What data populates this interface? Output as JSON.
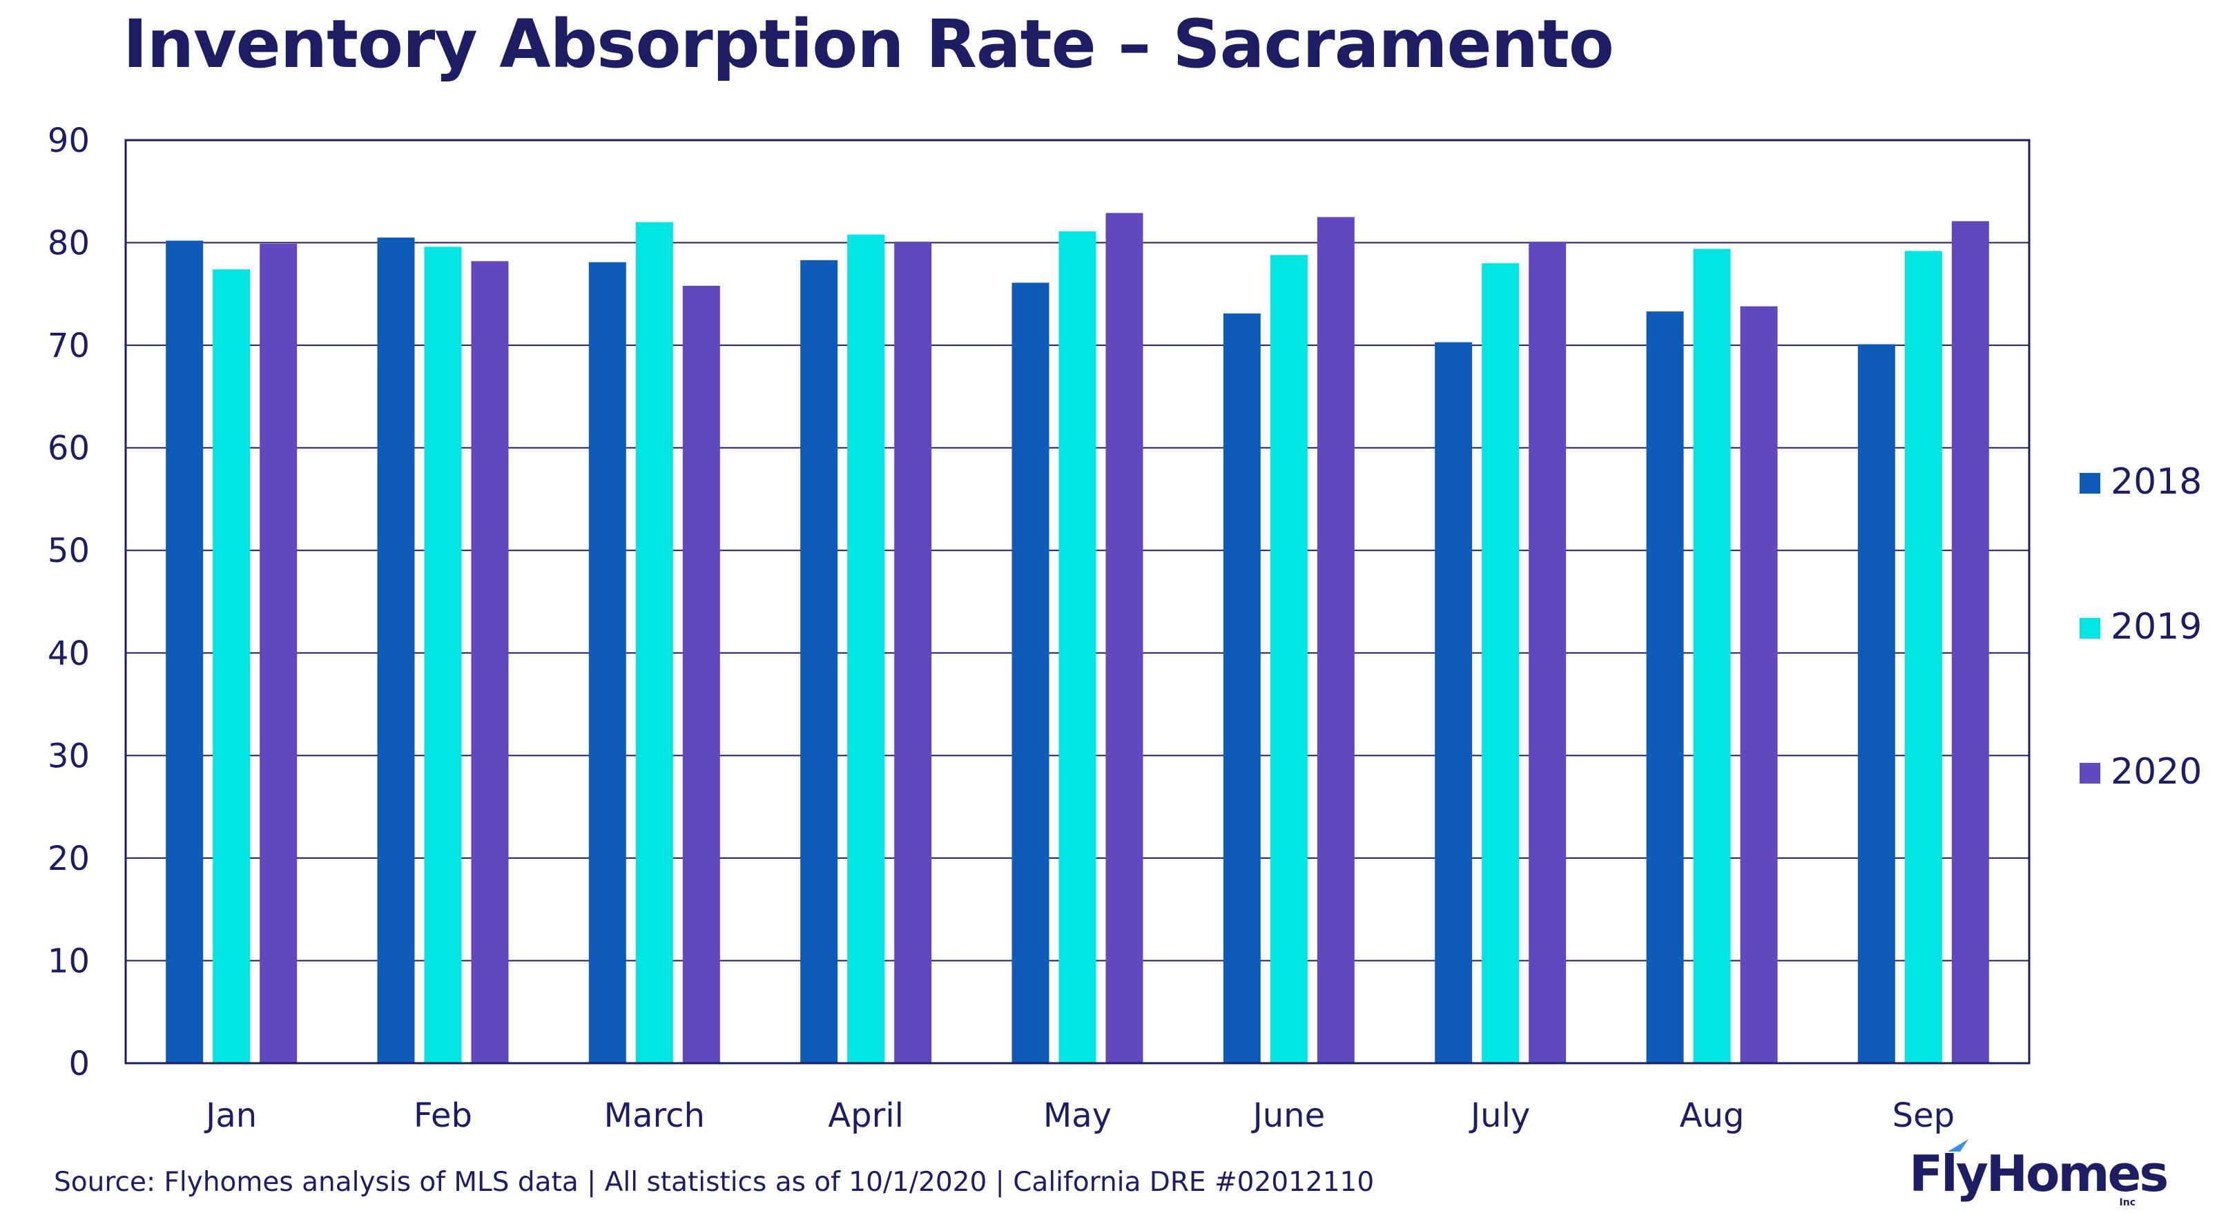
{
  "chart_data": {
    "type": "bar",
    "title": "Inventory Absorption Rate – Sacramento",
    "categories": [
      "Jan",
      "Feb",
      "March",
      "April",
      "May",
      "June",
      "July",
      "Aug",
      "Sep"
    ],
    "series": [
      {
        "name": "2018",
        "color": "#115bb8",
        "values": [
          80.2,
          80.5,
          78.1,
          78.3,
          76.1,
          73.1,
          70.3,
          73.3,
          70.1
        ]
      },
      {
        "name": "2019",
        "color": "#00e5e2",
        "values": [
          77.4,
          79.6,
          82.0,
          80.8,
          81.1,
          78.8,
          78.0,
          79.4,
          79.2
        ]
      },
      {
        "name": "2020",
        "color": "#6248bf",
        "values": [
          79.9,
          78.2,
          75.8,
          80.1,
          82.9,
          82.5,
          80.1,
          73.8,
          82.1
        ]
      }
    ],
    "xlabel": "",
    "ylabel": "",
    "ylim": [
      0,
      90
    ],
    "yticks": [
      0,
      10,
      20,
      30,
      40,
      50,
      60,
      70,
      80,
      90
    ],
    "grid": true,
    "legend_position": "right"
  },
  "source_note": "Source: Flyhomes analysis of MLS data | All statistics as of 10/1/2020 | California DRE #02012110",
  "brand": {
    "name": "FlyHomes",
    "suffix": "Inc",
    "text_color": "#1d1d63",
    "accent_color": "#3a8ee6"
  }
}
